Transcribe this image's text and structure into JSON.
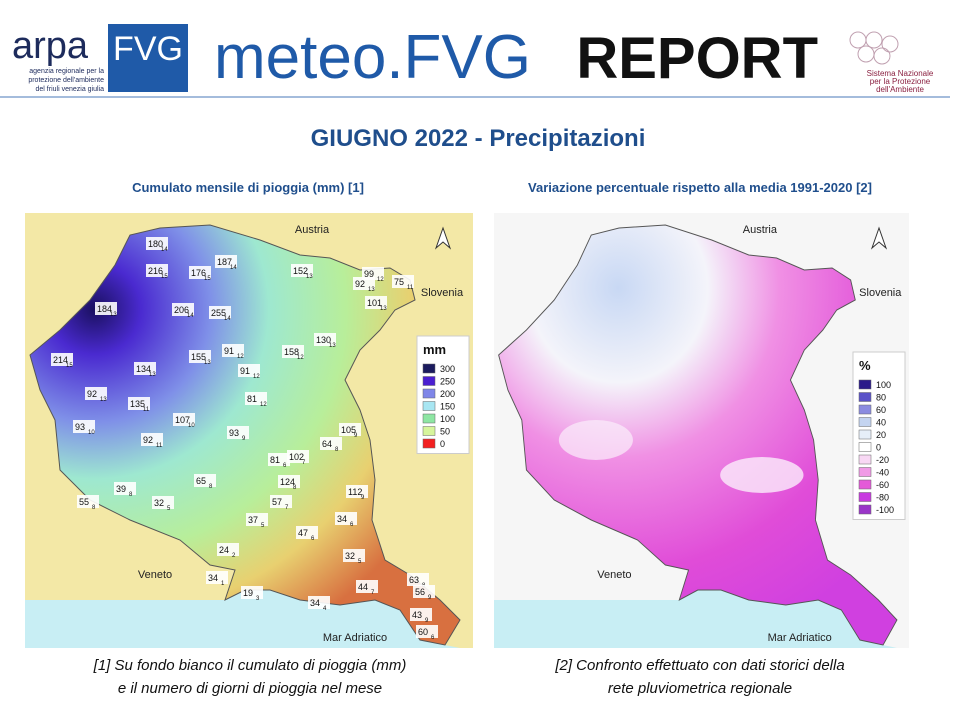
{
  "header": {
    "logo_arpa": "ARPA",
    "logo_fvg": "FVG",
    "logo_tagline": [
      "agenzia regionale per la",
      "protezione dell'ambiente",
      "del friuli venezia giulia"
    ],
    "brand": "meteo.FVG",
    "brand_suffix": "REPORT",
    "snpa": [
      "Sistema Nazionale",
      "per la Protezione",
      "dell'Ambiente"
    ]
  },
  "title": "GIUGNO 2022 - Precipitazioni",
  "maps": [
    {
      "subtitle": "Cumulato mensile di pioggia (mm) [1]",
      "legend_title": "mm",
      "legend": [
        {
          "value": 300,
          "color": "#1b1b5e"
        },
        {
          "value": 250,
          "color": "#4b1fd0"
        },
        {
          "value": 200,
          "color": "#7f86e8"
        },
        {
          "value": 150,
          "color": "#a8e6f2"
        },
        {
          "value": 100,
          "color": "#8ee6a3"
        },
        {
          "value": 50,
          "color": "#d6f59c"
        },
        {
          "value": 0,
          "color": "#f22020"
        }
      ],
      "places": [
        "Austria",
        "Slovenia",
        "Veneto",
        "Mar Adriatico"
      ],
      "stations": [
        {
          "value": 180,
          "days": 14
        },
        {
          "value": 187,
          "days": 14
        },
        {
          "value": 216,
          "days": 15
        },
        {
          "value": 176,
          "days": 15
        },
        {
          "value": 152,
          "days": 13
        },
        {
          "value": 99,
          "days": 12
        },
        {
          "value": 92,
          "days": 13
        },
        {
          "value": 75,
          "days": 11
        },
        {
          "value": 101,
          "days": 13
        },
        {
          "value": 184,
          "days": 13
        },
        {
          "value": 206,
          "days": 14
        },
        {
          "value": 255,
          "days": 14
        },
        {
          "value": 130,
          "days": 13
        },
        {
          "value": 91,
          "days": 12
        },
        {
          "value": 158,
          "days": 12
        },
        {
          "value": 214,
          "days": 15
        },
        {
          "value": 155,
          "days": 13
        },
        {
          "value": 134,
          "days": 13
        },
        {
          "value": 91,
          "days": 12
        },
        {
          "value": 92,
          "days": 13
        },
        {
          "value": 81,
          "days": 12
        },
        {
          "value": 135,
          "days": 11
        },
        {
          "value": 107,
          "days": 10
        },
        {
          "value": 93,
          "days": 10
        },
        {
          "value": 93,
          "days": 9
        },
        {
          "value": 105,
          "days": 9
        },
        {
          "value": 92,
          "days": 11
        },
        {
          "value": 64,
          "days": 8
        },
        {
          "value": 81,
          "days": 6
        },
        {
          "value": 102,
          "days": 7
        },
        {
          "value": 124,
          "days": 8
        },
        {
          "value": 65,
          "days": 8
        },
        {
          "value": 112,
          "days": 9
        },
        {
          "value": 39,
          "days": 8
        },
        {
          "value": 57,
          "days": 7
        },
        {
          "value": 55,
          "days": 8
        },
        {
          "value": 32,
          "days": 5
        },
        {
          "value": 37,
          "days": 5
        },
        {
          "value": 34,
          "days": 6
        },
        {
          "value": 47,
          "days": 6
        },
        {
          "value": 24,
          "days": 2
        },
        {
          "value": 32,
          "days": 5
        },
        {
          "value": 34,
          "days": 1
        },
        {
          "value": 63,
          "days": 8
        },
        {
          "value": 44,
          "days": 7
        },
        {
          "value": 56,
          "days": 9
        },
        {
          "value": 19,
          "days": 3
        },
        {
          "value": 34,
          "days": 4
        },
        {
          "value": 43,
          "days": 9
        },
        {
          "value": 60,
          "days": 6
        }
      ],
      "caption": [
        "[1] Su fondo bianco il cumulato di pioggia (mm)",
        "e il numero di giorni di pioggia nel mese"
      ]
    },
    {
      "subtitle": "Variazione percentuale rispetto alla media 1991-2020 [2]",
      "legend_title": "%",
      "legend": [
        {
          "value": 100,
          "color": "#2a1a8a"
        },
        {
          "value": 80,
          "color": "#5a52c8"
        },
        {
          "value": 60,
          "color": "#8c8ce0"
        },
        {
          "value": 40,
          "color": "#c4d4f0"
        },
        {
          "value": 20,
          "color": "#e6eef8"
        },
        {
          "value": 0,
          "color": "#ffffff"
        },
        {
          "value": -20,
          "color": "#f8d8f4"
        },
        {
          "value": -40,
          "color": "#f09ae6"
        },
        {
          "value": -60,
          "color": "#e45ad8"
        },
        {
          "value": -80,
          "color": "#c83ae0"
        },
        {
          "value": -100,
          "color": "#9a36c8"
        }
      ],
      "places": [
        "Austria",
        "Slovenia",
        "Veneto",
        "Mar Adriatico"
      ],
      "caption": [
        "[2] Confronto effettuato con dati storici della",
        "rete pluviometrica regionale"
      ]
    }
  ]
}
